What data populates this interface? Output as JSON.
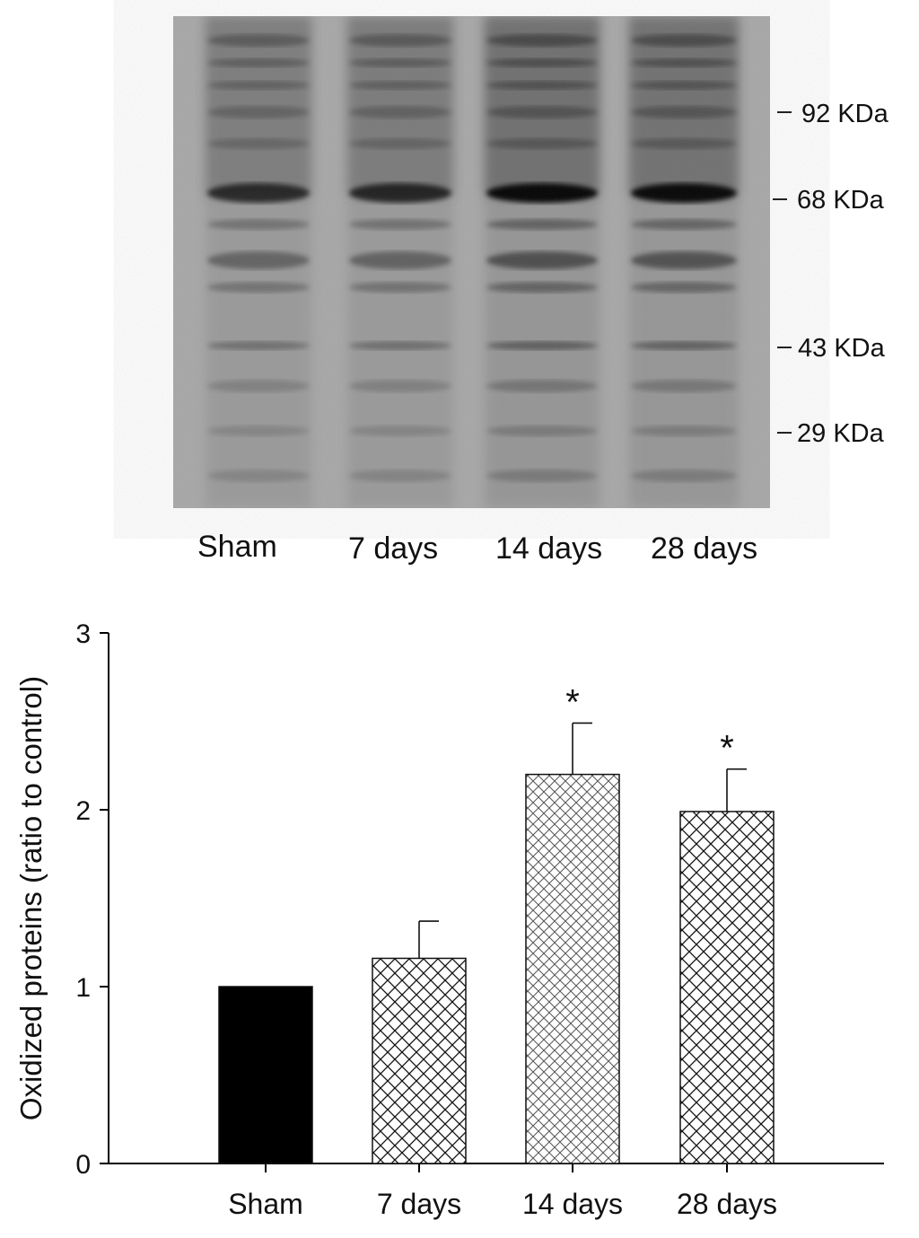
{
  "gel": {
    "lanes": [
      "Sham",
      "7 days",
      "14 days",
      "28 days"
    ],
    "markers": [
      "92 KDa",
      "68 KDa",
      "43 KDa",
      "29 KDa"
    ]
  },
  "chart_data": {
    "type": "bar",
    "categories": [
      "Sham",
      "7 days",
      "14 days",
      "28 days"
    ],
    "values": [
      1.0,
      1.16,
      2.2,
      1.99
    ],
    "errors": [
      0,
      0.21,
      0.29,
      0.24
    ],
    "significance": [
      "",
      "",
      "*",
      "*"
    ],
    "title": "",
    "xlabel": "",
    "ylabel": "Oxidized proteins (ratio to control)",
    "ylim": [
      0,
      3
    ],
    "yticks": [
      0,
      1,
      2,
      3
    ],
    "grid": false,
    "fills": [
      "solid",
      "crosshatch",
      "fine-crosshatch",
      "crosshatch"
    ],
    "colors": {
      "bar": "#000000",
      "axis": "#000000"
    }
  }
}
